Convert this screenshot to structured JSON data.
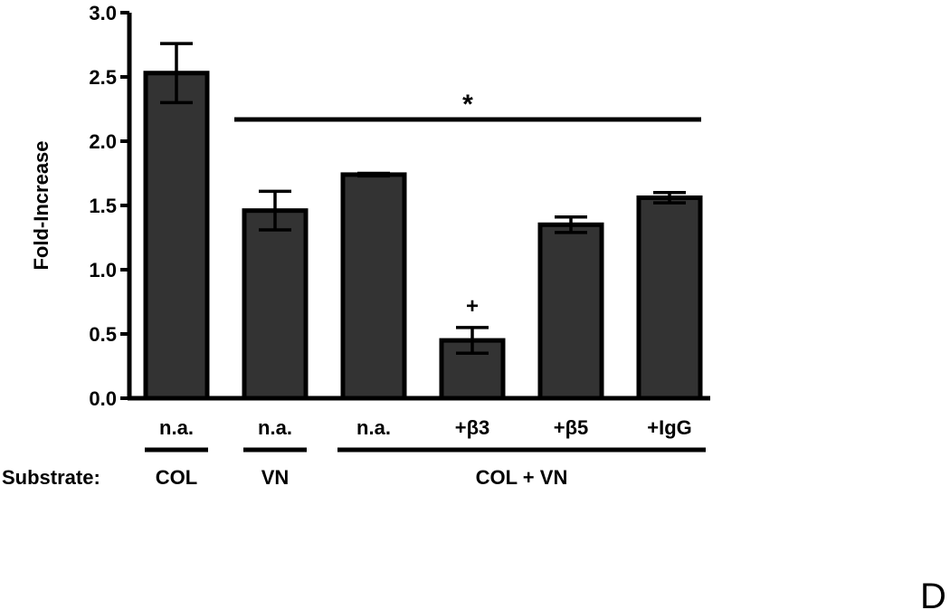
{
  "panel_letter": "D",
  "chart_data": {
    "type": "bar",
    "ylabel": "Fold-Increase",
    "ylim": [
      0,
      3.0
    ],
    "yticks": [
      "0.0",
      "0.5",
      "1.0",
      "1.5",
      "2.0",
      "2.5",
      "3.0"
    ],
    "categories": [
      "n.a.",
      "n.a.",
      "n.a.",
      "+β3",
      "+β5",
      "+IgG"
    ],
    "values": [
      2.53,
      1.46,
      1.74,
      0.45,
      1.35,
      1.56
    ],
    "errors": [
      0.23,
      0.15,
      0.01,
      0.1,
      0.06,
      0.04
    ],
    "bar_color": "#333333",
    "annotations": {
      "significance_symbol": "*",
      "significance_span": [
        1,
        5
      ],
      "plus_symbol": "+",
      "plus_on_bar": 3
    },
    "substrate": {
      "label": "Substrate:",
      "groups": [
        {
          "name": "COL",
          "bars": [
            0,
            0
          ]
        },
        {
          "name": "VN",
          "bars": [
            1,
            1
          ]
        },
        {
          "name": "COL + VN",
          "bars": [
            2,
            5
          ]
        }
      ]
    }
  }
}
